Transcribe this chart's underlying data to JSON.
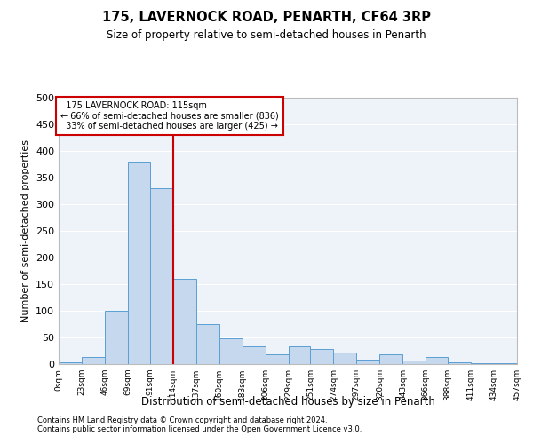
{
  "title": "175, LAVERNOCK ROAD, PENARTH, CF64 3RP",
  "subtitle": "Size of property relative to semi-detached houses in Penarth",
  "xlabel": "Distribution of semi-detached houses by size in Penarth",
  "ylabel": "Number of semi-detached properties",
  "footnote1": "Contains HM Land Registry data © Crown copyright and database right 2024.",
  "footnote2": "Contains public sector information licensed under the Open Government Licence v3.0.",
  "property_label": "175 LAVERNOCK ROAD: 115sqm",
  "pct_smaller": 66,
  "n_smaller": 836,
  "pct_larger": 33,
  "n_larger": 425,
  "bar_color": "#c5d8ee",
  "bar_edge_color": "#5a9fd4",
  "vline_color": "#cc0000",
  "annotation_box_color": "#cc0000",
  "background_color": "#eef2f9",
  "bin_edges": [
    0,
    23,
    46,
    69,
    91,
    114,
    137,
    160,
    183,
    206,
    229,
    251,
    274,
    297,
    320,
    343,
    366,
    388,
    411,
    434,
    457
  ],
  "bin_labels": [
    "0sqm",
    "23sqm",
    "46sqm",
    "69sqm",
    "91sqm",
    "114sqm",
    "137sqm",
    "160sqm",
    "183sqm",
    "206sqm",
    "229sqm",
    "251sqm",
    "274sqm",
    "297sqm",
    "320sqm",
    "343sqm",
    "366sqm",
    "388sqm",
    "411sqm",
    "434sqm",
    "457sqm"
  ],
  "counts": [
    4,
    14,
    100,
    380,
    330,
    160,
    75,
    48,
    33,
    18,
    33,
    28,
    22,
    8,
    18,
    7,
    13,
    4,
    2,
    2
  ],
  "ylim": [
    0,
    500
  ],
  "yticks": [
    0,
    50,
    100,
    150,
    200,
    250,
    300,
    350,
    400,
    450,
    500
  ],
  "vline_x": 114
}
